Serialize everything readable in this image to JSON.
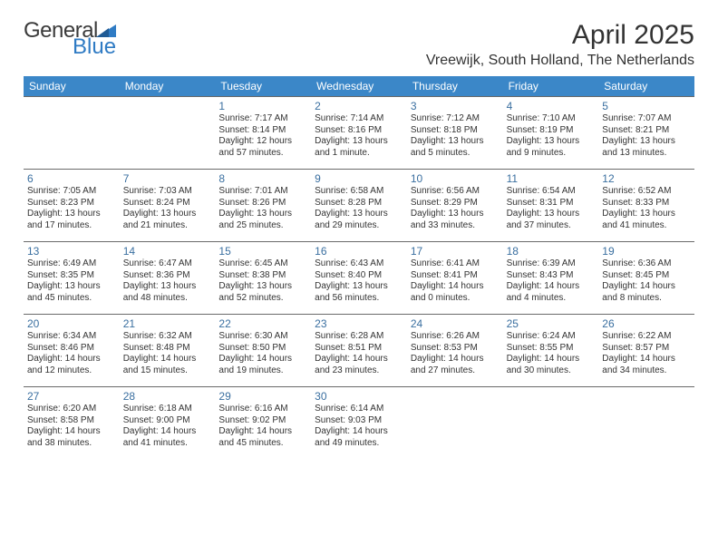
{
  "logo": {
    "text1": "General",
    "text2": "Blue"
  },
  "header": {
    "month_title": "April 2025",
    "location": "Vreewijk, South Holland, The Netherlands"
  },
  "day_names": [
    "Sunday",
    "Monday",
    "Tuesday",
    "Wednesday",
    "Thursday",
    "Friday",
    "Saturday"
  ],
  "colors": {
    "header_bg": "#3b87c8",
    "header_fg": "#ffffff",
    "daynum": "#3a6fa0",
    "border": "#6a6a6a",
    "logo_accent": "#2f7bc4"
  },
  "layout": {
    "cols": 7,
    "rows": 5,
    "first_day_col": 2
  },
  "days": [
    {
      "n": "1",
      "sunrise": "7:17 AM",
      "sunset": "8:14 PM",
      "daylight": "12 hours and 57 minutes."
    },
    {
      "n": "2",
      "sunrise": "7:14 AM",
      "sunset": "8:16 PM",
      "daylight": "13 hours and 1 minute."
    },
    {
      "n": "3",
      "sunrise": "7:12 AM",
      "sunset": "8:18 PM",
      "daylight": "13 hours and 5 minutes."
    },
    {
      "n": "4",
      "sunrise": "7:10 AM",
      "sunset": "8:19 PM",
      "daylight": "13 hours and 9 minutes."
    },
    {
      "n": "5",
      "sunrise": "7:07 AM",
      "sunset": "8:21 PM",
      "daylight": "13 hours and 13 minutes."
    },
    {
      "n": "6",
      "sunrise": "7:05 AM",
      "sunset": "8:23 PM",
      "daylight": "13 hours and 17 minutes."
    },
    {
      "n": "7",
      "sunrise": "7:03 AM",
      "sunset": "8:24 PM",
      "daylight": "13 hours and 21 minutes."
    },
    {
      "n": "8",
      "sunrise": "7:01 AM",
      "sunset": "8:26 PM",
      "daylight": "13 hours and 25 minutes."
    },
    {
      "n": "9",
      "sunrise": "6:58 AM",
      "sunset": "8:28 PM",
      "daylight": "13 hours and 29 minutes."
    },
    {
      "n": "10",
      "sunrise": "6:56 AM",
      "sunset": "8:29 PM",
      "daylight": "13 hours and 33 minutes."
    },
    {
      "n": "11",
      "sunrise": "6:54 AM",
      "sunset": "8:31 PM",
      "daylight": "13 hours and 37 minutes."
    },
    {
      "n": "12",
      "sunrise": "6:52 AM",
      "sunset": "8:33 PM",
      "daylight": "13 hours and 41 minutes."
    },
    {
      "n": "13",
      "sunrise": "6:49 AM",
      "sunset": "8:35 PM",
      "daylight": "13 hours and 45 minutes."
    },
    {
      "n": "14",
      "sunrise": "6:47 AM",
      "sunset": "8:36 PM",
      "daylight": "13 hours and 48 minutes."
    },
    {
      "n": "15",
      "sunrise": "6:45 AM",
      "sunset": "8:38 PM",
      "daylight": "13 hours and 52 minutes."
    },
    {
      "n": "16",
      "sunrise": "6:43 AM",
      "sunset": "8:40 PM",
      "daylight": "13 hours and 56 minutes."
    },
    {
      "n": "17",
      "sunrise": "6:41 AM",
      "sunset": "8:41 PM",
      "daylight": "14 hours and 0 minutes."
    },
    {
      "n": "18",
      "sunrise": "6:39 AM",
      "sunset": "8:43 PM",
      "daylight": "14 hours and 4 minutes."
    },
    {
      "n": "19",
      "sunrise": "6:36 AM",
      "sunset": "8:45 PM",
      "daylight": "14 hours and 8 minutes."
    },
    {
      "n": "20",
      "sunrise": "6:34 AM",
      "sunset": "8:46 PM",
      "daylight": "14 hours and 12 minutes."
    },
    {
      "n": "21",
      "sunrise": "6:32 AM",
      "sunset": "8:48 PM",
      "daylight": "14 hours and 15 minutes."
    },
    {
      "n": "22",
      "sunrise": "6:30 AM",
      "sunset": "8:50 PM",
      "daylight": "14 hours and 19 minutes."
    },
    {
      "n": "23",
      "sunrise": "6:28 AM",
      "sunset": "8:51 PM",
      "daylight": "14 hours and 23 minutes."
    },
    {
      "n": "24",
      "sunrise": "6:26 AM",
      "sunset": "8:53 PM",
      "daylight": "14 hours and 27 minutes."
    },
    {
      "n": "25",
      "sunrise": "6:24 AM",
      "sunset": "8:55 PM",
      "daylight": "14 hours and 30 minutes."
    },
    {
      "n": "26",
      "sunrise": "6:22 AM",
      "sunset": "8:57 PM",
      "daylight": "14 hours and 34 minutes."
    },
    {
      "n": "27",
      "sunrise": "6:20 AM",
      "sunset": "8:58 PM",
      "daylight": "14 hours and 38 minutes."
    },
    {
      "n": "28",
      "sunrise": "6:18 AM",
      "sunset": "9:00 PM",
      "daylight": "14 hours and 41 minutes."
    },
    {
      "n": "29",
      "sunrise": "6:16 AM",
      "sunset": "9:02 PM",
      "daylight": "14 hours and 45 minutes."
    },
    {
      "n": "30",
      "sunrise": "6:14 AM",
      "sunset": "9:03 PM",
      "daylight": "14 hours and 49 minutes."
    }
  ],
  "labels": {
    "sunrise": "Sunrise: ",
    "sunset": "Sunset: ",
    "daylight": "Daylight: "
  }
}
